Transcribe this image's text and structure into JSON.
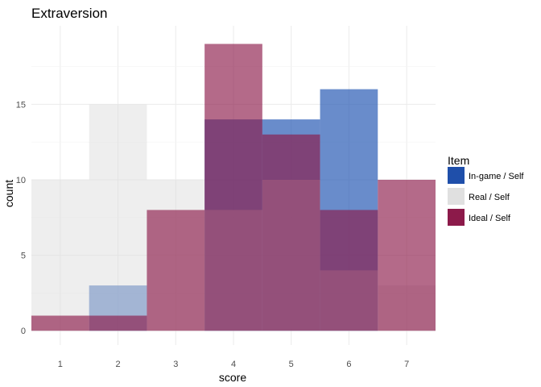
{
  "chart_data": {
    "type": "histogram",
    "title": "Extraversion",
    "xlabel": "score",
    "ylabel": "count",
    "x_ticks": [
      1,
      2,
      3,
      4,
      5,
      6,
      7
    ],
    "y_ticks": [
      0,
      5,
      10,
      15
    ],
    "xlim": [
      0.5,
      7.5
    ],
    "ylim": [
      0,
      19
    ],
    "grid": true,
    "legend": {
      "title": "Item",
      "position": "right"
    },
    "series": [
      {
        "name": "In-game / Self",
        "color": "#2a5bb5",
        "opacity": 0.7,
        "values": [
          0,
          3,
          0,
          14,
          14,
          16,
          0
        ]
      },
      {
        "name": "Real / Self",
        "color": "#dddddd",
        "opacity": 0.5,
        "values": [
          10,
          15,
          10,
          8,
          10,
          4,
          3
        ]
      },
      {
        "name": "Ideal / Self",
        "color": "#8c1a4a",
        "opacity": 0.65,
        "values": [
          1,
          1,
          8,
          19,
          13,
          8,
          10
        ]
      }
    ],
    "legend_colors": [
      "#1f4faa",
      "#e0e0e0",
      "#8c1a4a"
    ]
  }
}
